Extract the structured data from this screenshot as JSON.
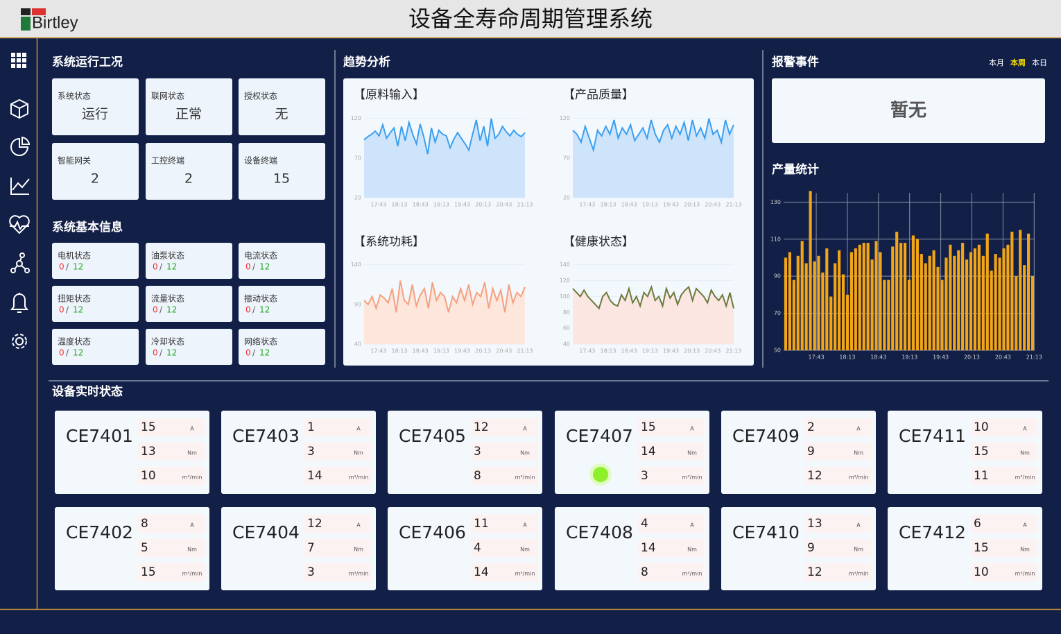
{
  "header": {
    "logo": "Birtley",
    "title": "设备全寿命周期管理系统"
  },
  "overview": {
    "title": "系统运行工况",
    "cards": [
      {
        "label": "系统状态",
        "value": "运行"
      },
      {
        "label": "联网状态",
        "value": "正常"
      },
      {
        "label": "授权状态",
        "value": "无"
      },
      {
        "label": "智能网关",
        "value": 2
      },
      {
        "label": "工控终端",
        "value": 2
      },
      {
        "label": "设备终端",
        "value": 15
      }
    ]
  },
  "basic_info": {
    "title": "系统基本信息",
    "separator": "/",
    "items": [
      {
        "label": "电机状态",
        "fault": 0,
        "total": 12
      },
      {
        "label": "油泵状态",
        "fault": 0,
        "total": 12
      },
      {
        "label": "电流状态",
        "fault": 0,
        "total": 12
      },
      {
        "label": "扭矩状态",
        "fault": 0,
        "total": 12
      },
      {
        "label": "流量状态",
        "fault": 0,
        "total": 12
      },
      {
        "label": "振动状态",
        "fault": 0,
        "total": 12
      },
      {
        "label": "温度状态",
        "fault": 0,
        "total": 12
      },
      {
        "label": "冷却状态",
        "fault": 0,
        "total": 12
      },
      {
        "label": "网络状态",
        "fault": 0,
        "total": 12
      }
    ]
  },
  "trend": {
    "title": "趋势分析"
  },
  "alarm": {
    "title": "报警事件",
    "tabs": [
      "本月",
      "本周",
      "本日"
    ],
    "active_tab": 1,
    "content": "暂无"
  },
  "chart_data": [
    {
      "type": "line",
      "title": "【原料输入】",
      "color": "#3a9ff0",
      "fill": "#cde4fb",
      "ylim": [
        20,
        125
      ],
      "yticks": [
        20,
        70,
        120
      ],
      "xticklabels": [
        "17:43",
        "18:13",
        "18:43",
        "19:13",
        "19:43",
        "20:13",
        "20:43",
        "21:13"
      ],
      "values": [
        93,
        97,
        100,
        104,
        98,
        112,
        95,
        102,
        108,
        85,
        110,
        92,
        115,
        100,
        88,
        113,
        96,
        75,
        108,
        90,
        105,
        100,
        98,
        83,
        94,
        102,
        95,
        88,
        80,
        100,
        118,
        92,
        110,
        85,
        120,
        95,
        100,
        110,
        103,
        98,
        105,
        100,
        97,
        102
      ]
    },
    {
      "type": "line",
      "title": "【产品质量】",
      "color": "#3a9ff0",
      "fill": "#cde4fb",
      "ylim": [
        20,
        125
      ],
      "yticks": [
        20,
        70,
        120
      ],
      "xticklabels": [
        "17:43",
        "18:13",
        "18:43",
        "19:13",
        "19:43",
        "20:13",
        "20:43",
        "21:13"
      ],
      "values": [
        105,
        100,
        90,
        110,
        95,
        80,
        105,
        98,
        110,
        100,
        118,
        95,
        108,
        100,
        112,
        92,
        100,
        108,
        95,
        118,
        100,
        90,
        105,
        112,
        95,
        110,
        100,
        115,
        92,
        118,
        98,
        108,
        95,
        120,
        100,
        105,
        90,
        118,
        100,
        112
      ]
    },
    {
      "type": "line",
      "title": "【系统功耗】",
      "color": "#f5a07e",
      "fill": "#fde6dc",
      "ylim": [
        40,
        145
      ],
      "yticks": [
        40,
        90,
        140
      ],
      "xticklabels": [
        "17:43",
        "18:13",
        "18:43",
        "19:13",
        "19:43",
        "20:13",
        "20:43",
        "21:13"
      ],
      "values": [
        95,
        90,
        100,
        85,
        102,
        98,
        92,
        110,
        80,
        120,
        95,
        90,
        115,
        88,
        102,
        110,
        85,
        118,
        95,
        105,
        100,
        80,
        100,
        92,
        110,
        95,
        115,
        90,
        105,
        100,
        118,
        85,
        110,
        95,
        108,
        80,
        115,
        92,
        105,
        100,
        112
      ]
    },
    {
      "type": "line",
      "title": "【健康状态】",
      "color": "#6b7a3a",
      "fill": "#fbe6e2",
      "ylim": [
        40,
        145
      ],
      "yticks": [
        40,
        60,
        80,
        100,
        120,
        140
      ],
      "xticklabels": [
        "17:43",
        "18:13",
        "18:43",
        "19:13",
        "19:43",
        "20:13",
        "20:43",
        "21:13"
      ],
      "values": [
        110,
        105,
        100,
        108,
        100,
        95,
        90,
        85,
        100,
        105,
        95,
        90,
        88,
        102,
        95,
        110,
        92,
        100,
        88,
        105,
        100,
        112,
        95,
        100,
        88,
        110,
        98,
        105,
        90,
        102,
        108,
        112,
        95,
        110,
        105,
        100,
        92,
        108,
        100,
        95,
        102,
        88,
        105,
        85
      ]
    },
    {
      "type": "bar",
      "title": "产量统计",
      "color": "#f2a516",
      "grid": true,
      "ylim": [
        50,
        135
      ],
      "yticks": [
        50,
        70,
        90,
        110,
        130
      ],
      "xticklabels": [
        "17:43",
        "18:13",
        "18:43",
        "19:13",
        "19:43",
        "20:13",
        "20:43",
        "21:13"
      ],
      "values": [
        100,
        103,
        88,
        101,
        109,
        97,
        136,
        98,
        101,
        92,
        105,
        79,
        97,
        104,
        91,
        80,
        103,
        105,
        107,
        108,
        108,
        99,
        109,
        103,
        88,
        88,
        106,
        114,
        108,
        108,
        88,
        112,
        110,
        102,
        97,
        101,
        104,
        95,
        88,
        100,
        107,
        101,
        104,
        108,
        99,
        103,
        105,
        107,
        101,
        113,
        93,
        102,
        100,
        105,
        107,
        114,
        90,
        115,
        96,
        113,
        90
      ]
    }
  ],
  "devices": {
    "title": "设备实时状态",
    "units": [
      "A",
      "Nm",
      "m³/min"
    ],
    "items": [
      {
        "name": "CE7401",
        "values": [
          15,
          13,
          10
        ],
        "indicator": false
      },
      {
        "name": "CE7403",
        "values": [
          1,
          3,
          14
        ],
        "indicator": false
      },
      {
        "name": "CE7405",
        "values": [
          12,
          3,
          8
        ],
        "indicator": false
      },
      {
        "name": "CE7407",
        "values": [
          15,
          14,
          3
        ],
        "indicator": true
      },
      {
        "name": "CE7409",
        "values": [
          2,
          9,
          12
        ],
        "indicator": false
      },
      {
        "name": "CE7411",
        "values": [
          10,
          15,
          11
        ],
        "indicator": false
      },
      {
        "name": "CE7402",
        "values": [
          8,
          5,
          15
        ],
        "indicator": false
      },
      {
        "name": "CE7404",
        "values": [
          12,
          7,
          3
        ],
        "indicator": false
      },
      {
        "name": "CE7406",
        "values": [
          11,
          4,
          14
        ],
        "indicator": false
      },
      {
        "name": "CE7408",
        "values": [
          4,
          14,
          8
        ],
        "indicator": false
      },
      {
        "name": "CE7410",
        "values": [
          13,
          9,
          12
        ],
        "indicator": false
      },
      {
        "name": "CE7412",
        "values": [
          6,
          15,
          10
        ],
        "indicator": false
      }
    ]
  }
}
